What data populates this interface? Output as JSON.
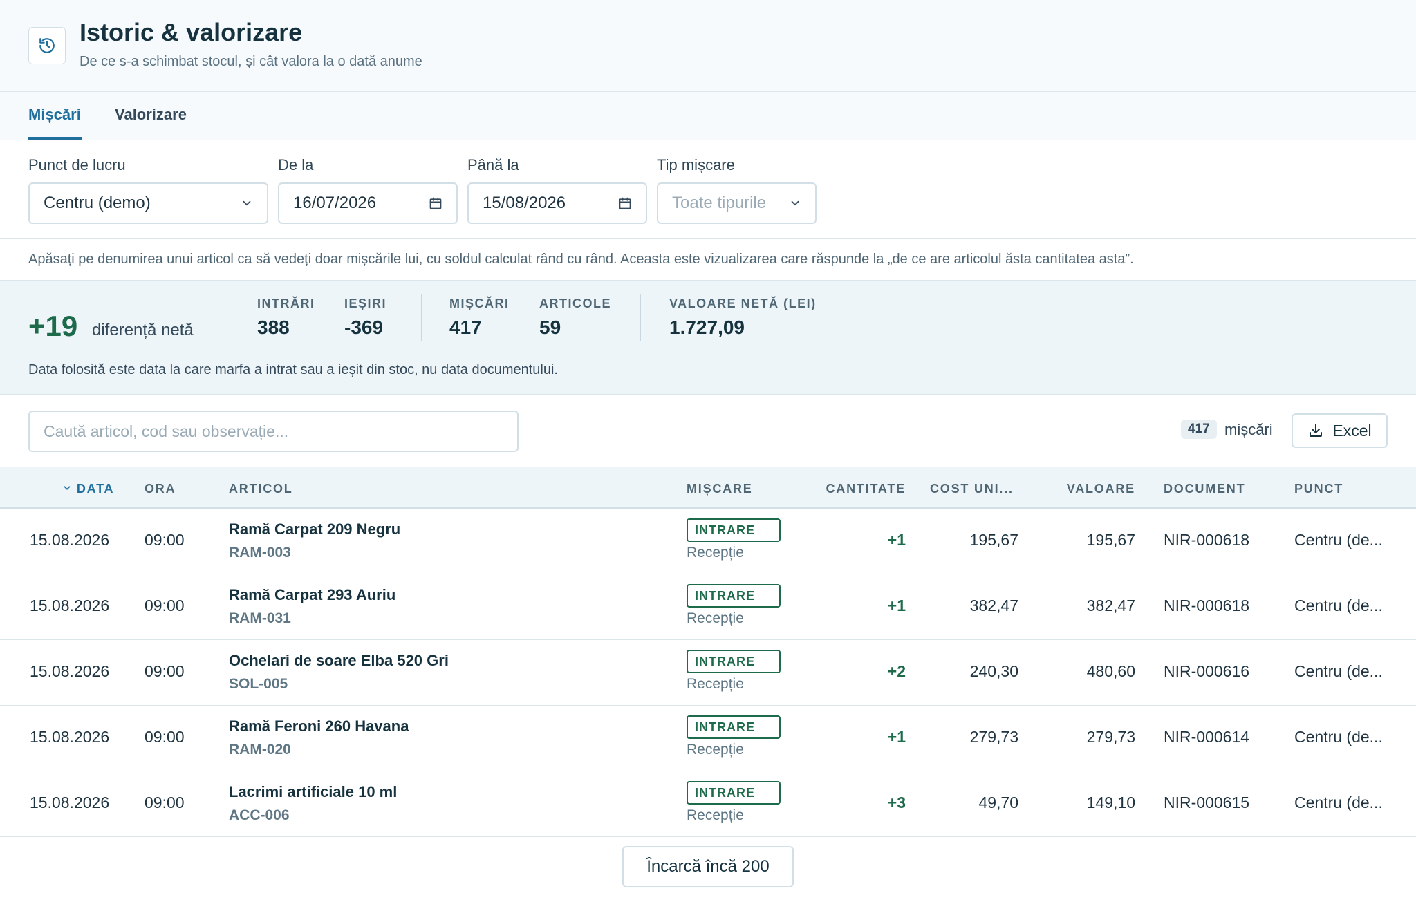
{
  "header": {
    "icon": "history-icon",
    "title": "Istoric & valorizare",
    "subtitle": "De ce s-a schimbat stocul, și cât valora la o dată anume"
  },
  "tabs": [
    {
      "label": "Mișcări",
      "active": true
    },
    {
      "label": "Valorizare",
      "active": false
    }
  ],
  "filters": {
    "location": {
      "label": "Punct de lucru",
      "value": "Centru (demo)"
    },
    "from": {
      "label": "De la",
      "value": "16/07/2026"
    },
    "to": {
      "label": "Până la",
      "value": "15/08/2026"
    },
    "type": {
      "label": "Tip mișcare",
      "placeholder": "Toate tipurile"
    }
  },
  "hint": "Apăsați pe denumirea unui articol ca să vedeți doar mișcările lui, cu soldul calculat rând cu rând. Aceasta este vizualizarea care răspunde la „de ce are articolul ăsta cantitatea asta”.",
  "stats": {
    "net_value": "+19",
    "net_label": "diferență netă",
    "in_label": "INTRĂRI",
    "in_value": "388",
    "out_label": "IEȘIRI",
    "out_value": "-369",
    "moves_label": "MIȘCĂRI",
    "moves_value": "417",
    "articles_label": "ARTICOLE",
    "articles_value": "59",
    "net_lei_label": "VALOARE NETĂ (LEI)",
    "net_lei_value": "1.727,09",
    "note": "Data folosită este data la care marfa a intrat sau a ieșit din stoc, nu data documentului."
  },
  "search": {
    "placeholder": "Caută articol, cod sau observație..."
  },
  "count": {
    "value": "417",
    "label": "mișcări"
  },
  "excel_label": "Excel",
  "columns": {
    "date": "DATA",
    "time": "ORA",
    "article": "ARTICOL",
    "movement": "MIȘCARE",
    "quantity": "CANTITATE",
    "unit_cost": "COST UNI...",
    "value": "VALOARE",
    "document": "DOCUMENT",
    "point": "PUNCT"
  },
  "rows": [
    {
      "date": "15.08.2026",
      "time": "09:00",
      "name": "Ramă Carpat 209 Negru",
      "code": "RAM-003",
      "badge": "INTRARE",
      "type": "Recepție",
      "qty": "+1",
      "unit_cost": "195,67",
      "value": "195,67",
      "document": "NIR-000618",
      "point": "Centru (de..."
    },
    {
      "date": "15.08.2026",
      "time": "09:00",
      "name": "Ramă Carpat 293 Auriu",
      "code": "RAM-031",
      "badge": "INTRARE",
      "type": "Recepție",
      "qty": "+1",
      "unit_cost": "382,47",
      "value": "382,47",
      "document": "NIR-000618",
      "point": "Centru (de..."
    },
    {
      "date": "15.08.2026",
      "time": "09:00",
      "name": "Ochelari de soare Elba 520 Gri",
      "code": "SOL-005",
      "badge": "INTRARE",
      "type": "Recepție",
      "qty": "+2",
      "unit_cost": "240,30",
      "value": "480,60",
      "document": "NIR-000616",
      "point": "Centru (de..."
    },
    {
      "date": "15.08.2026",
      "time": "09:00",
      "name": "Ramă Feroni 260 Havana",
      "code": "RAM-020",
      "badge": "INTRARE",
      "type": "Recepție",
      "qty": "+1",
      "unit_cost": "279,73",
      "value": "279,73",
      "document": "NIR-000614",
      "point": "Centru (de..."
    },
    {
      "date": "15.08.2026",
      "time": "09:00",
      "name": "Lacrimi artificiale 10 ml",
      "code": "ACC-006",
      "badge": "INTRARE",
      "type": "Recepție",
      "qty": "+3",
      "unit_cost": "49,70",
      "value": "149,10",
      "document": "NIR-000615",
      "point": "Centru (de..."
    }
  ],
  "load_more_label": "Încarcă încă 200"
}
